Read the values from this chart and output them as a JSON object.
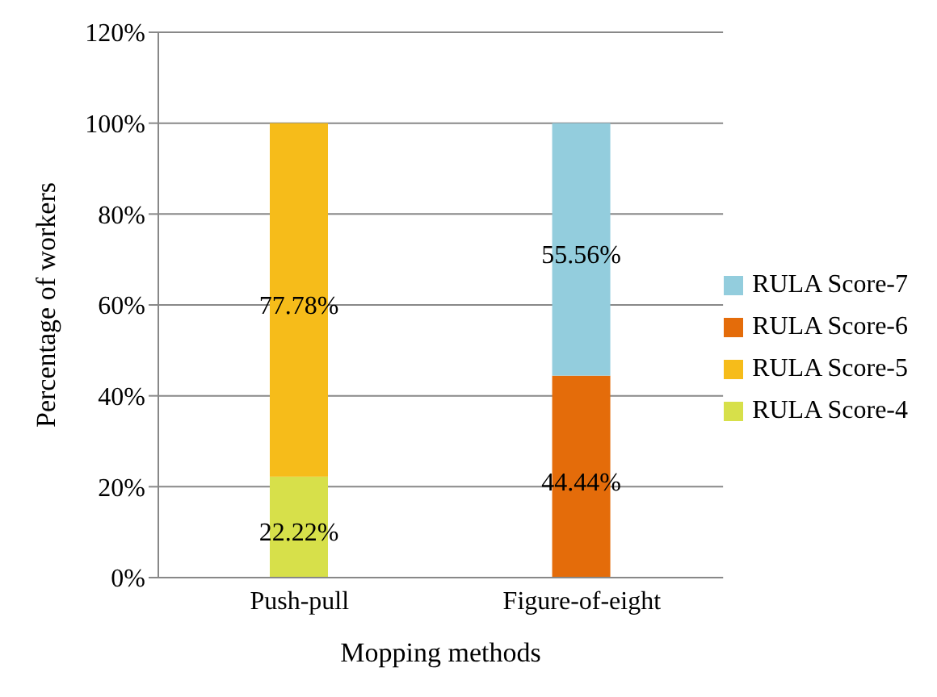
{
  "chart_data": {
    "type": "bar",
    "stacked": true,
    "xlabel": "Mopping methods",
    "ylabel": "Percentage of workers",
    "categories": [
      "Push-pull",
      "Figure-of-eight"
    ],
    "series": [
      {
        "name": "RULA Score-4",
        "color": "#d7e04a",
        "values": [
          22.22,
          null
        ],
        "value_labels": [
          "22.22%",
          null
        ]
      },
      {
        "name": "RULA Score-5",
        "color": "#f6bc1a",
        "values": [
          77.78,
          null
        ],
        "value_labels": [
          "77.78%",
          null
        ]
      },
      {
        "name": "RULA Score-6",
        "color": "#e46c0a",
        "values": [
          null,
          44.44
        ],
        "value_labels": [
          null,
          "44.44%"
        ]
      },
      {
        "name": "RULA Score-7",
        "color": "#93cddd",
        "values": [
          null,
          55.56
        ],
        "value_labels": [
          null,
          "55.56%"
        ]
      }
    ],
    "ylim": [
      0,
      120
    ],
    "yticks": [
      {
        "value": 0,
        "label": "0%"
      },
      {
        "value": 20,
        "label": "20%"
      },
      {
        "value": 40,
        "label": "40%"
      },
      {
        "value": 60,
        "label": "60%"
      },
      {
        "value": 80,
        "label": "80%"
      },
      {
        "value": 100,
        "label": "100%"
      },
      {
        "value": 120,
        "label": "120%"
      }
    ],
    "grid": "y",
    "legend": "right"
  }
}
